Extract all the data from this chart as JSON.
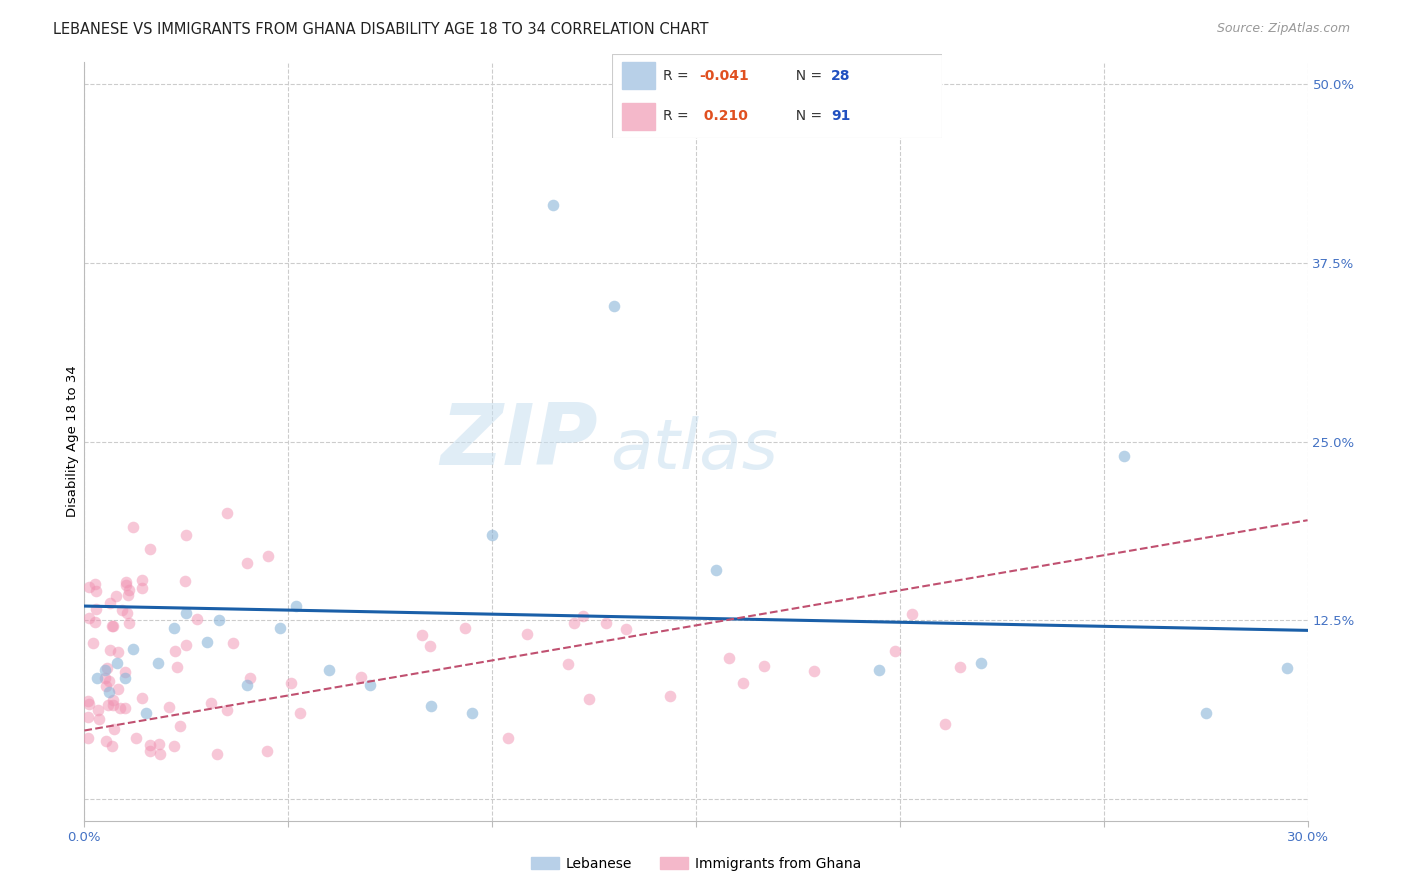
{
  "title": "LEBANESE VS IMMIGRANTS FROM GHANA DISABILITY AGE 18 TO 34 CORRELATION CHART",
  "source": "Source: ZipAtlas.com",
  "ylabel": "Disability Age 18 to 34",
  "xlim": [
    0.0,
    0.3
  ],
  "ylim": [
    -0.015,
    0.515
  ],
  "xticks": [
    0.0,
    0.05,
    0.1,
    0.15,
    0.2,
    0.25,
    0.3
  ],
  "xticklabels": [
    "0.0%",
    "",
    "",
    "",
    "",
    "",
    "30.0%"
  ],
  "yticks_right": [
    0.0,
    0.125,
    0.25,
    0.375,
    0.5
  ],
  "yticklabels_right": [
    "",
    "12.5%",
    "25.0%",
    "37.5%",
    "50.0%"
  ],
  "legend_bottom": [
    "Lebanese",
    "Immigrants from Ghana"
  ],
  "watermark_zip": "ZIP",
  "watermark_atlas": "atlas",
  "blue_scatter_color": "#8ab4d8",
  "pink_scatter_color": "#f090b0",
  "line_blue_color": "#1a5fa8",
  "line_pink_color": "#c05070",
  "scatter_blue_alpha": 0.6,
  "scatter_pink_alpha": 0.5,
  "scatter_marker_size": 70,
  "grid_color": "#cccccc",
  "background_color": "#ffffff",
  "title_fontsize": 10.5,
  "axis_label_fontsize": 9.5,
  "tick_fontsize": 9.5,
  "right_tick_color": "#4472c4",
  "legend_blue_patch": "#b8d0e8",
  "legend_pink_patch": "#f4b8ca",
  "r_value_color": "#e05020",
  "n_value_color": "#2050c0",
  "leb_trendline_start_y": 0.135,
  "leb_trendline_end_y": 0.118,
  "ghana_trendline_start_y": 0.048,
  "ghana_trendline_end_y": 0.195
}
